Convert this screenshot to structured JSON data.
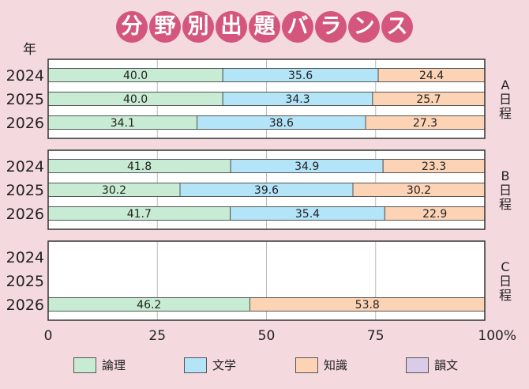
{
  "title_chars": [
    "分",
    "野",
    "別",
    "出",
    "題",
    "バ",
    "ラ",
    "ン",
    "ス"
  ],
  "chart_data": {
    "type": "bar",
    "stacked": true,
    "orientation": "horizontal",
    "year_header": "年",
    "xlim": [
      0,
      100
    ],
    "x_ticks": [
      "0",
      "25",
      "50",
      "75",
      "100%"
    ],
    "grid": true,
    "legend_position": "bottom",
    "series_names": [
      "論理",
      "文学",
      "知識",
      "韻文"
    ],
    "series_colors": [
      "#c7ecd3",
      "#b3e4f8",
      "#fdd3b6",
      "#dacbe8"
    ],
    "groups": [
      {
        "name": "A日程",
        "rows": [
          {
            "year": "2024",
            "values": [
              40.0,
              35.6,
              24.4,
              0
            ]
          },
          {
            "year": "2025",
            "values": [
              40.0,
              34.3,
              25.7,
              0
            ]
          },
          {
            "year": "2026",
            "values": [
              34.1,
              38.6,
              27.3,
              0
            ]
          }
        ]
      },
      {
        "name": "B日程",
        "rows": [
          {
            "year": "2024",
            "values": [
              41.8,
              34.9,
              23.3,
              0
            ]
          },
          {
            "year": "2025",
            "values": [
              30.2,
              39.6,
              30.2,
              0
            ]
          },
          {
            "year": "2026",
            "values": [
              41.7,
              35.4,
              22.9,
              0
            ]
          }
        ]
      },
      {
        "name": "C日程",
        "rows": [
          {
            "year": "2024",
            "values": null
          },
          {
            "year": "2025",
            "values": null
          },
          {
            "year": "2026",
            "values": [
              46.2,
              0,
              53.8,
              0
            ]
          }
        ]
      }
    ]
  }
}
